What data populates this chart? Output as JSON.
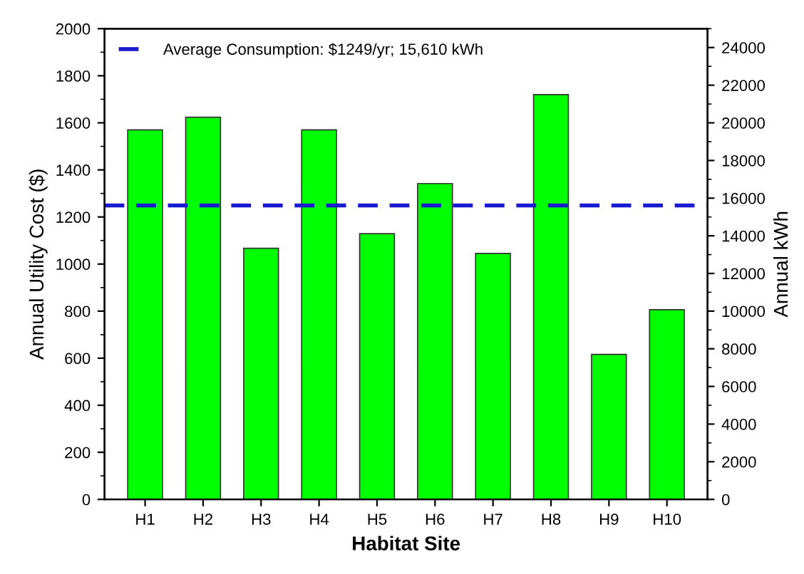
{
  "chart_data": {
    "type": "bar",
    "xlabel": "Habitat Site",
    "ylabel": "Annual Utility Cost ($)",
    "y2label": "Annual kWh",
    "categories": [
      "H1",
      "H2",
      "H3",
      "H4",
      "H5",
      "H6",
      "H7",
      "H8",
      "H9",
      "H10"
    ],
    "series": [
      {
        "color": "#00ff00",
        "values": [
          1570,
          1624,
          1067,
          1570,
          1129,
          1342,
          1045,
          1720,
          616,
          806
        ]
      }
    ],
    "ylim": [
      0,
      2000
    ],
    "yticks": [
      0,
      200,
      400,
      600,
      800,
      1000,
      1200,
      1400,
      1600,
      1800,
      2000
    ],
    "y2lim": [
      0,
      25000
    ],
    "y2ticks": [
      0,
      2000,
      4000,
      6000,
      8000,
      10000,
      12000,
      14000,
      16000,
      18000,
      20000,
      22000,
      24000
    ],
    "ref_lines": [
      {
        "axis": "y",
        "value": 1249,
        "label": "Average Consumption: $1249/yr; 15,610 kWh",
        "color": "#1a1ad0",
        "line_style": "dashed"
      }
    ],
    "legend": "top left",
    "grid": false
  }
}
